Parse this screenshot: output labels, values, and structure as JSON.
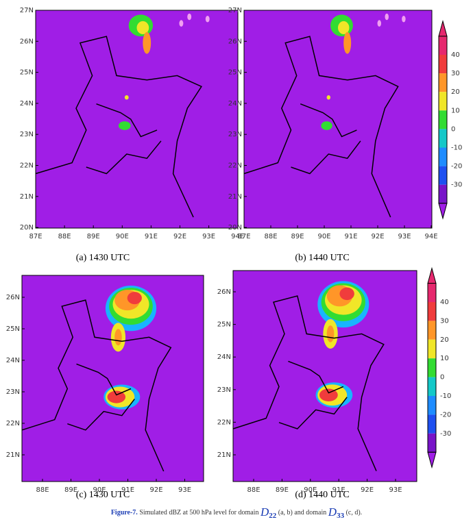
{
  "panels": [
    {
      "yticks": [
        "27N",
        "26N",
        "25N",
        "24N",
        "23N",
        "22N",
        "21N",
        "20N"
      ],
      "xticks": [
        "87E",
        "88E",
        "89E",
        "90E",
        "91E",
        "92E",
        "93E",
        "94E"
      ],
      "caption": "(a) 1430 UTC"
    },
    {
      "yticks": [
        "27N",
        "26N",
        "25N",
        "24N",
        "23N",
        "22N",
        "21N",
        "20N"
      ],
      "xticks": [
        "87E",
        "88E",
        "89E",
        "90E",
        "91E",
        "92E",
        "93E",
        "94E"
      ],
      "caption": "(b) 1440 UTC"
    },
    {
      "yticks": [
        "26N",
        "25N",
        "24N",
        "23N",
        "22N",
        "21N"
      ],
      "xticks": [
        "88E",
        "89E",
        "90E",
        "91E",
        "92E",
        "93E"
      ],
      "caption": "(c) 1430 UTC"
    },
    {
      "yticks": [
        "26N",
        "25N",
        "24N",
        "23N",
        "22N",
        "21N"
      ],
      "xticks": [
        "88E",
        "89E",
        "90E",
        "91E",
        "92E",
        "93E"
      ],
      "caption": "(d) 1440 UTC"
    }
  ],
  "colorbars": [
    {
      "labels": [
        "40",
        "30",
        "20",
        "10",
        "0",
        "-10",
        "-20",
        "-30"
      ]
    },
    {
      "labels": [
        "40",
        "30",
        "20",
        "10",
        "0",
        "-10",
        "-20",
        "-30"
      ]
    }
  ],
  "figure_caption": {
    "label": "Figure-7.",
    "text1": "Simulated dBZ at 500 hPa level for domain",
    "symbol1": "D",
    "sub1": "22",
    "text2": "(a, b) and domain",
    "symbol2": "D",
    "sub2": "33",
    "text3": "(c, d)."
  }
}
